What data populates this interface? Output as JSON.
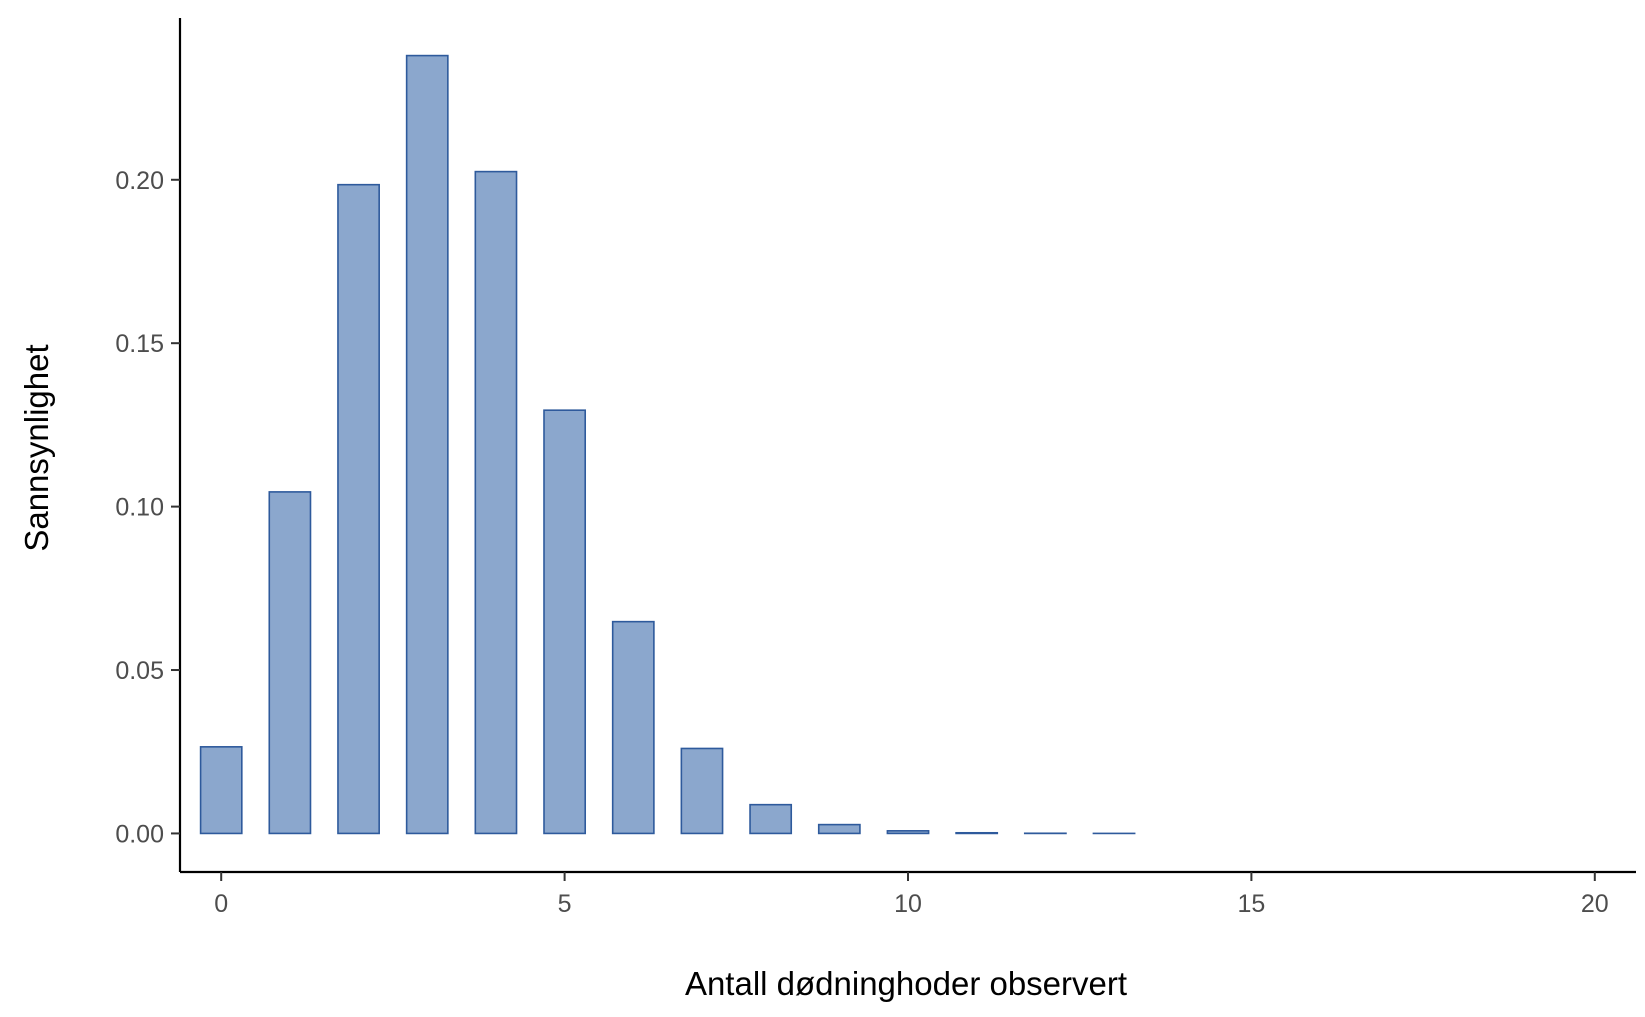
{
  "chart_data": {
    "type": "bar",
    "title": "",
    "xlabel": "Antall dødninghoder observert",
    "ylabel": "Sannsynlighet",
    "x": [
      0,
      1,
      2,
      3,
      4,
      5,
      6,
      7,
      8,
      9,
      10,
      11,
      12,
      13,
      14,
      15,
      16,
      17,
      18,
      19,
      20
    ],
    "values": [
      0.0265,
      0.1045,
      0.1985,
      0.238,
      0.2025,
      0.1295,
      0.0648,
      0.026,
      0.0088,
      0.0027,
      0.0008,
      0.0002,
      5e-05,
      1e-05,
      0,
      0,
      0,
      0,
      0,
      0,
      0
    ],
    "xlim": [
      -0.6,
      20.6
    ],
    "ylim": [
      -0.0118,
      0.2495
    ],
    "x_ticks": [
      0,
      5,
      10,
      15,
      20
    ],
    "x_tick_labels": [
      "0",
      "5",
      "10",
      "15",
      "20"
    ],
    "y_ticks": [
      0,
      0.05,
      0.1,
      0.15,
      0.2
    ],
    "y_tick_labels": [
      "0.00",
      "0.05",
      "0.10",
      "0.15",
      "0.20"
    ],
    "grid": false,
    "legend": "none",
    "colors": {
      "bar_fill": "#8ba7cd",
      "bar_stroke": "#2e5a9c",
      "axis": "#000000",
      "tick_label": "#4d4d4d"
    }
  }
}
